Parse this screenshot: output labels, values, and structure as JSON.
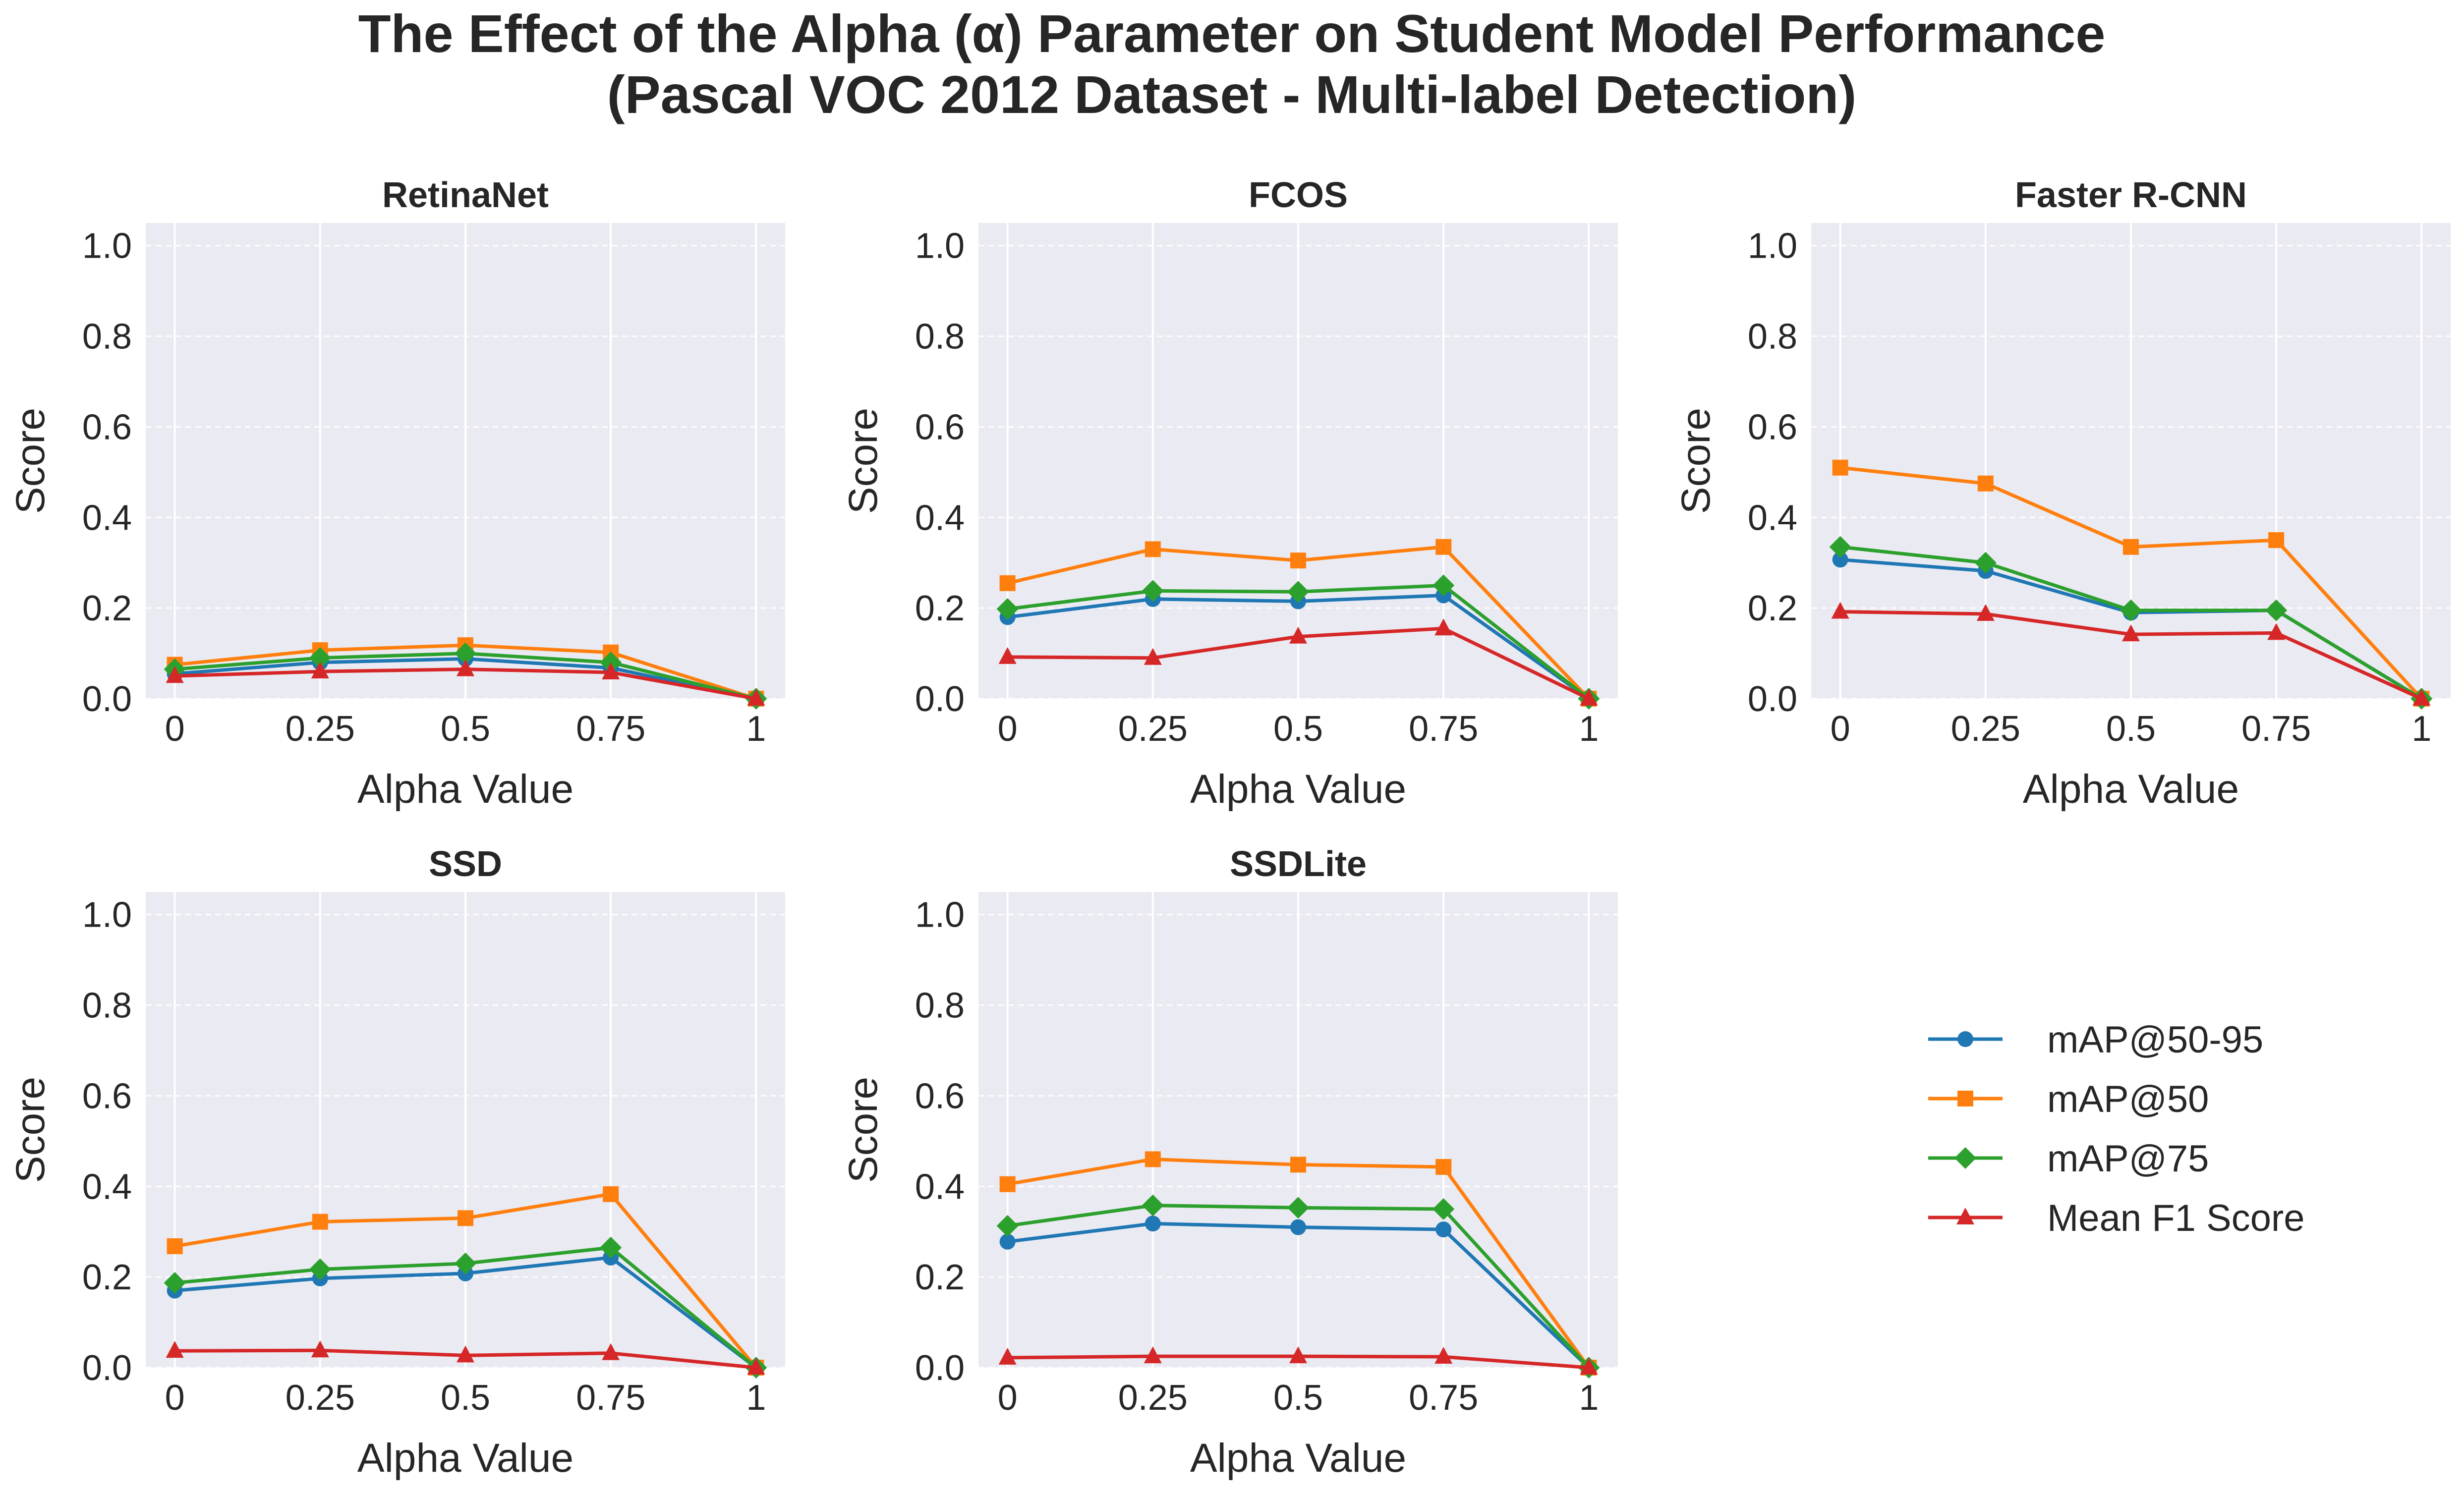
{
  "figure": {
    "title_line1": "The Effect of the Alpha (α) Parameter on Student Model Performance",
    "title_line2": "(Pascal VOC 2012 Dataset - Multi-label Detection)"
  },
  "legend": [
    {
      "name": "mAP@50-95",
      "color": "#1f77b4",
      "marker": "circle"
    },
    {
      "name": "mAP@50",
      "color": "#ff7f0e",
      "marker": "square"
    },
    {
      "name": "mAP@75",
      "color": "#2ca02c",
      "marker": "diamond"
    },
    {
      "name": "Mean F1 Score",
      "color": "#d62728",
      "marker": "triangle"
    }
  ],
  "chart_data": [
    {
      "type": "line",
      "title": "RetinaNet",
      "xlabel": "Alpha Value",
      "ylabel": "Score",
      "x": [
        "0",
        "0.25",
        "0.5",
        "0.75",
        "1"
      ],
      "ylim": [
        0,
        1.05
      ],
      "yticks": [
        "0.0",
        "0.2",
        "0.4",
        "0.6",
        "0.8",
        "1.0"
      ],
      "series": [
        {
          "name": "mAP@50-95",
          "values": [
            0.055,
            0.08,
            0.088,
            0.068,
            0.0
          ]
        },
        {
          "name": "mAP@50",
          "values": [
            0.075,
            0.107,
            0.118,
            0.102,
            0.0
          ]
        },
        {
          "name": "mAP@75",
          "values": [
            0.065,
            0.09,
            0.1,
            0.08,
            0.0
          ]
        },
        {
          "name": "Mean F1 Score",
          "values": [
            0.05,
            0.06,
            0.065,
            0.058,
            0.0
          ]
        }
      ]
    },
    {
      "type": "line",
      "title": "FCOS",
      "xlabel": "Alpha Value",
      "ylabel": "Score",
      "x": [
        "0",
        "0.25",
        "0.5",
        "0.75",
        "1"
      ],
      "ylim": [
        0,
        1.05
      ],
      "yticks": [
        "0.0",
        "0.2",
        "0.4",
        "0.6",
        "0.8",
        "1.0"
      ],
      "series": [
        {
          "name": "mAP@50-95",
          "values": [
            0.18,
            0.22,
            0.215,
            0.228,
            0.0
          ]
        },
        {
          "name": "mAP@50",
          "values": [
            0.255,
            0.33,
            0.305,
            0.335,
            0.0
          ]
        },
        {
          "name": "mAP@75",
          "values": [
            0.198,
            0.238,
            0.236,
            0.25,
            0.0
          ]
        },
        {
          "name": "Mean F1 Score",
          "values": [
            0.092,
            0.09,
            0.137,
            0.155,
            0.0
          ]
        }
      ]
    },
    {
      "type": "line",
      "title": "Faster R-CNN",
      "xlabel": "Alpha Value",
      "ylabel": "Score",
      "x": [
        "0",
        "0.25",
        "0.5",
        "0.75",
        "1"
      ],
      "ylim": [
        0,
        1.05
      ],
      "yticks": [
        "0.0",
        "0.2",
        "0.4",
        "0.6",
        "0.8",
        "1.0"
      ],
      "series": [
        {
          "name": "mAP@50-95",
          "values": [
            0.307,
            0.282,
            0.19,
            0.195,
            0.0
          ]
        },
        {
          "name": "mAP@50",
          "values": [
            0.51,
            0.475,
            0.335,
            0.35,
            0.0
          ]
        },
        {
          "name": "mAP@75",
          "values": [
            0.335,
            0.3,
            0.195,
            0.195,
            0.0
          ]
        },
        {
          "name": "Mean F1 Score",
          "values": [
            0.192,
            0.187,
            0.142,
            0.145,
            0.0
          ]
        }
      ]
    },
    {
      "type": "line",
      "title": "SSD",
      "xlabel": "Alpha Value",
      "ylabel": "Score",
      "x": [
        "0",
        "0.25",
        "0.5",
        "0.75",
        "1"
      ],
      "ylim": [
        0,
        1.05
      ],
      "yticks": [
        "0.0",
        "0.2",
        "0.4",
        "0.6",
        "0.8",
        "1.0"
      ],
      "series": [
        {
          "name": "mAP@50-95",
          "values": [
            0.17,
            0.197,
            0.208,
            0.243,
            0.0
          ]
        },
        {
          "name": "mAP@50",
          "values": [
            0.268,
            0.322,
            0.33,
            0.383,
            0.0
          ]
        },
        {
          "name": "mAP@75",
          "values": [
            0.187,
            0.217,
            0.23,
            0.265,
            0.0
          ]
        },
        {
          "name": "Mean F1 Score",
          "values": [
            0.037,
            0.038,
            0.027,
            0.032,
            0.0
          ]
        }
      ]
    },
    {
      "type": "line",
      "title": "SSDLite",
      "xlabel": "Alpha Value",
      "ylabel": "Score",
      "x": [
        "0",
        "0.25",
        "0.5",
        "0.75",
        "1"
      ],
      "ylim": [
        0,
        1.05
      ],
      "yticks": [
        "0.0",
        "0.2",
        "0.4",
        "0.6",
        "0.8",
        "1.0"
      ],
      "series": [
        {
          "name": "mAP@50-95",
          "values": [
            0.278,
            0.318,
            0.31,
            0.305,
            0.0
          ]
        },
        {
          "name": "mAP@50",
          "values": [
            0.405,
            0.46,
            0.448,
            0.443,
            0.0
          ]
        },
        {
          "name": "mAP@75",
          "values": [
            0.313,
            0.358,
            0.353,
            0.35,
            0.0
          ]
        },
        {
          "name": "Mean F1 Score",
          "values": [
            0.022,
            0.025,
            0.025,
            0.024,
            0.0
          ]
        }
      ]
    }
  ]
}
